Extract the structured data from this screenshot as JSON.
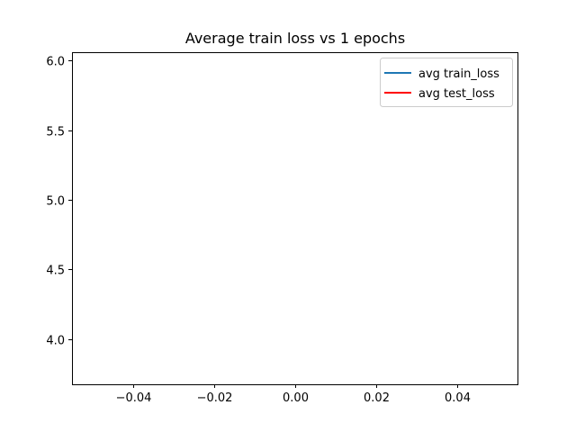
{
  "chart_data": {
    "type": "line",
    "title": "Average train loss vs 1 epochs",
    "xlabel": "",
    "ylabel": "",
    "xlim": [
      -0.055,
      0.055
    ],
    "ylim": [
      3.675,
      6.06
    ],
    "xticks": [
      -0.04,
      -0.02,
      0.0,
      0.02,
      0.04
    ],
    "xtick_labels": [
      "−0.04",
      "−0.02",
      "0.00",
      "0.02",
      "0.04"
    ],
    "yticks": [
      4.0,
      4.5,
      5.0,
      5.5,
      6.0
    ],
    "ytick_labels": [
      "4.0",
      "4.5",
      "5.0",
      "5.5",
      "6.0"
    ],
    "grid": false,
    "legend_position": "upper right",
    "series": [
      {
        "name": "avg train_loss",
        "color": "#1f77b4",
        "x": [],
        "y": []
      },
      {
        "name": "avg test_loss",
        "color": "#ff0000",
        "x": [],
        "y": []
      }
    ]
  }
}
